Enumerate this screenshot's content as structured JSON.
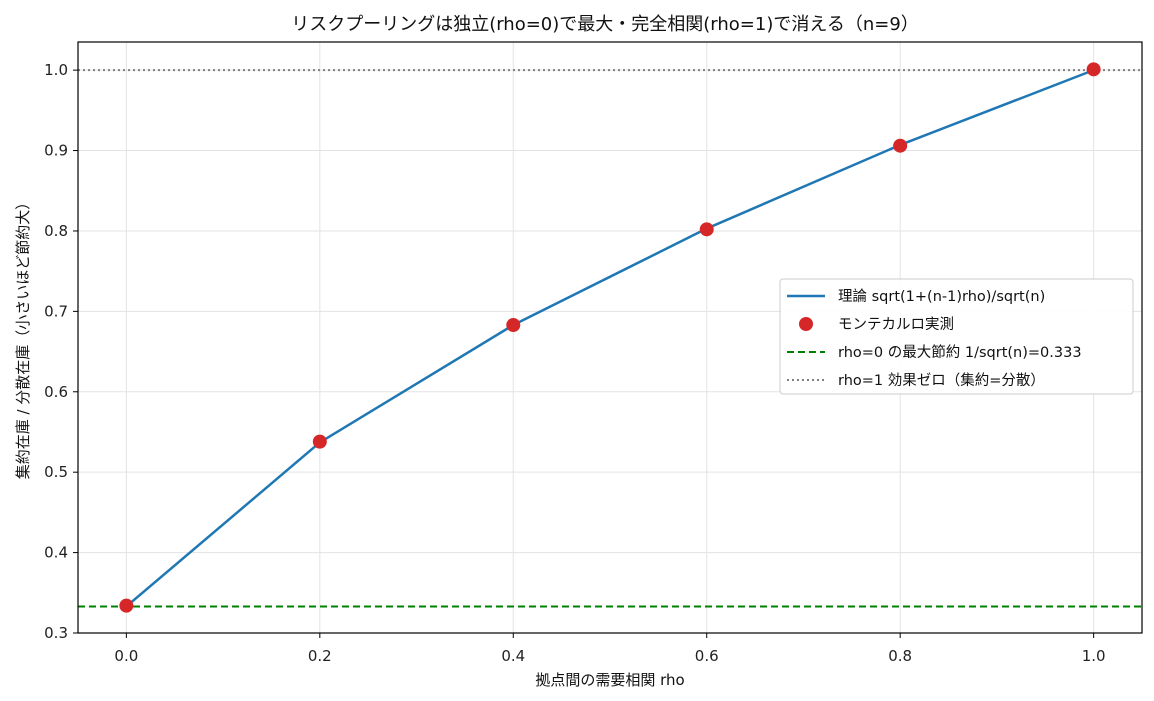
{
  "chart_data": {
    "type": "line",
    "title": "リスクプーリングは独立(rho=0)で最大・完全相関(rho=1)で消える（n=9）",
    "xlabel": "拠点間の需要相関 rho",
    "ylabel": "集約在庫 / 分散在庫（小さいほど節約大）",
    "xlim": [
      -0.05,
      1.05
    ],
    "ylim": [
      0.3,
      1.035
    ],
    "xticks": [
      0.0,
      0.2,
      0.4,
      0.6,
      0.8,
      1.0
    ],
    "xtick_labels": [
      "0.0",
      "0.2",
      "0.4",
      "0.6",
      "0.8",
      "1.0"
    ],
    "yticks": [
      0.3,
      0.4,
      0.5,
      0.6,
      0.7,
      0.8,
      0.9,
      1.0
    ],
    "ytick_labels": [
      "0.3",
      "0.4",
      "0.5",
      "0.6",
      "0.7",
      "0.8",
      "0.9",
      "1.0"
    ],
    "grid": true,
    "legend_position": "center-right",
    "series": [
      {
        "name": "理論 sqrt(1+(n-1)rho)/sqrt(n)",
        "kind": "line",
        "color": "#1f77b4",
        "x": [
          0.0,
          0.2,
          0.4,
          0.6,
          0.8,
          1.0
        ],
        "y": [
          0.333,
          0.537,
          0.683,
          0.803,
          0.907,
          1.0
        ]
      },
      {
        "name": "モンテカルロ実測",
        "kind": "scatter",
        "color": "#d62728",
        "x": [
          0.0,
          0.2,
          0.4,
          0.6,
          0.8,
          1.0
        ],
        "y": [
          0.334,
          0.538,
          0.683,
          0.802,
          0.906,
          1.001
        ]
      }
    ],
    "reference_lines": [
      {
        "name": "rho=0 の最大節約 1/sqrt(n)=0.333",
        "y": 0.333,
        "color": "#008000",
        "style": "dashed"
      },
      {
        "name": "rho=1 効果ゼロ（集約=分散）",
        "y": 1.0,
        "color": "#808080",
        "style": "dotted"
      }
    ]
  }
}
